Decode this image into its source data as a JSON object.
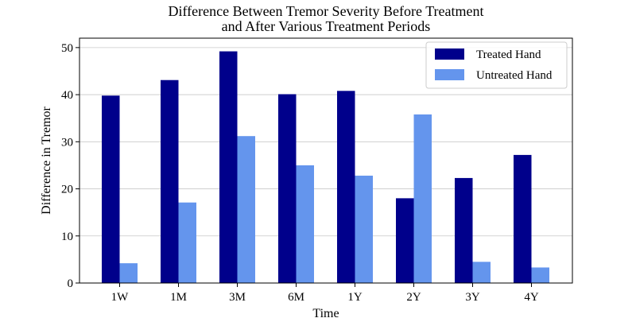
{
  "chart_data": {
    "type": "bar",
    "title_line1": "Difference Between Tremor Severity Before Treatment",
    "title_line2": "and After Various Treatment Periods",
    "xlabel": "Time",
    "ylabel": "Difference in Tremor",
    "categories": [
      "1W",
      "1M",
      "3M",
      "6M",
      "1Y",
      "2Y",
      "3Y",
      "4Y"
    ],
    "series": [
      {
        "name": "Treated Hand",
        "color": "#00008b",
        "values": [
          39.8,
          43.1,
          49.2,
          40.1,
          40.8,
          18.0,
          22.3,
          27.2
        ]
      },
      {
        "name": "Untreated Hand",
        "color": "#6495ed",
        "values": [
          4.2,
          17.1,
          31.2,
          25.0,
          22.8,
          35.8,
          4.5,
          3.3
        ]
      }
    ],
    "ylim": [
      0,
      52
    ],
    "yticks": [
      0,
      10,
      20,
      30,
      40,
      50
    ],
    "grid": "horizontal",
    "legend_position": "top-right"
  }
}
